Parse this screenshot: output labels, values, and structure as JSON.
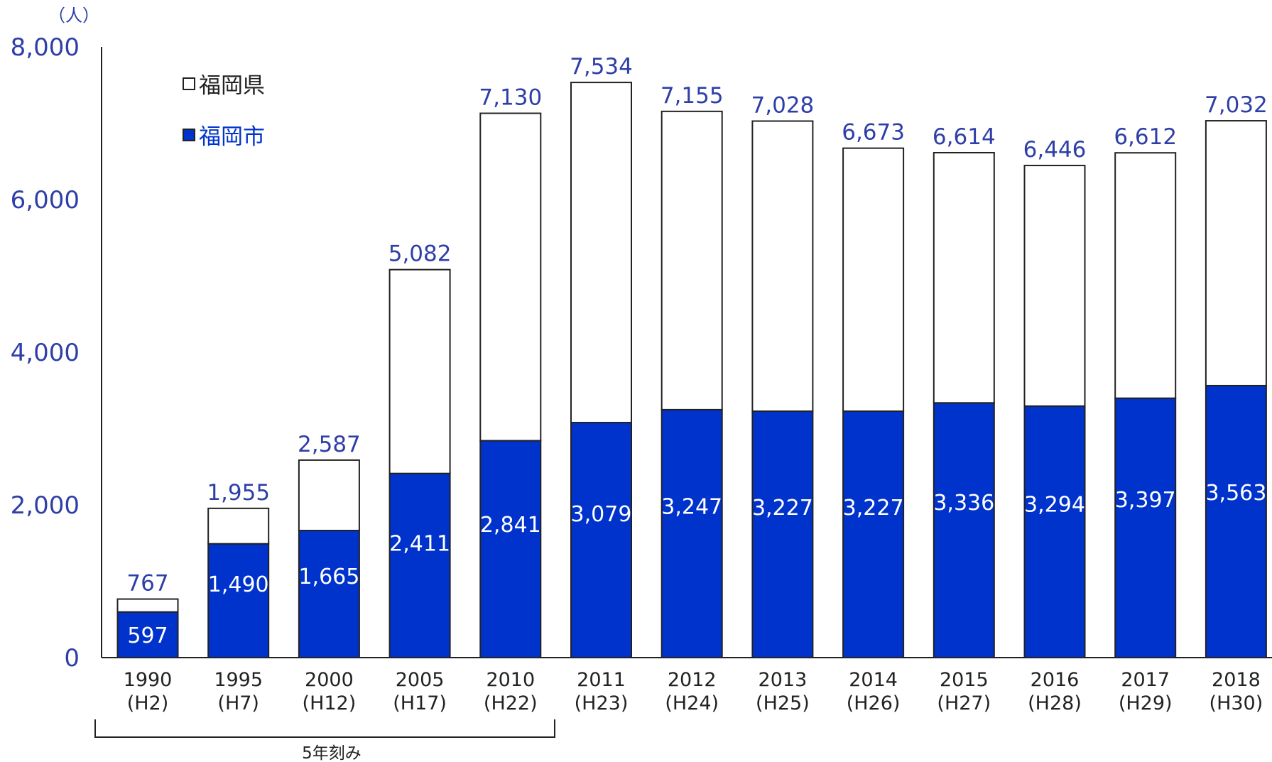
{
  "chart_data": {
    "type": "bar",
    "stacked": true,
    "unit_label": "（人）",
    "categories": [
      "1990",
      "1995",
      "2000",
      "2005",
      "2010",
      "2011",
      "2012",
      "2013",
      "2014",
      "2015",
      "2016",
      "2017",
      "2018"
    ],
    "category_sublabels": [
      "(H2)",
      "(H7)",
      "(H12)",
      "(H17)",
      "(H22)",
      "(H23)",
      "(H24)",
      "(H25)",
      "(H26)",
      "(H27)",
      "(H28)",
      "(H29)",
      "(H30)"
    ],
    "series": [
      {
        "name": "福岡市",
        "color": "#0033cc",
        "values": [
          597,
          1490,
          1665,
          2411,
          2841,
          3079,
          3247,
          3227,
          3227,
          3336,
          3294,
          3397,
          3563
        ]
      },
      {
        "name": "福岡県",
        "color": "#ffffff",
        "totals": [
          767,
          1955,
          2587,
          5082,
          7130,
          7534,
          7155,
          7028,
          6673,
          6614,
          6446,
          6612,
          7032
        ]
      }
    ],
    "value_labels": {
      "totals": [
        "767",
        "1,955",
        "2,587",
        "5,082",
        "7,130",
        "7,534",
        "7,155",
        "7,028",
        "6,673",
        "6,614",
        "6,446",
        "6,612",
        "7,032"
      ],
      "city": [
        "597",
        "1,490",
        "1,665",
        "2,411",
        "2,841",
        "3,079",
        "3,247",
        "3,227",
        "3,227",
        "3,336",
        "3,294",
        "3,397",
        "3,563"
      ]
    },
    "y_ticks": [
      {
        "value": 0,
        "label": "0"
      },
      {
        "value": 2000,
        "label": "2,000"
      },
      {
        "value": 4000,
        "label": "4,000"
      },
      {
        "value": 6000,
        "label": "6,000"
      },
      {
        "value": 8000,
        "label": "8,000"
      }
    ],
    "ylim": [
      0,
      8000
    ],
    "grid": false,
    "legend": {
      "placement": "top-left",
      "items": [
        {
          "label": "福岡県",
          "color": "#ffffff",
          "text_color": "#222222"
        },
        {
          "label": "福岡市",
          "color": "#0033cc",
          "text_color": "#0033cc"
        }
      ]
    },
    "annotation": {
      "label": "5年刻み",
      "span": [
        "1990",
        "2010"
      ]
    }
  }
}
